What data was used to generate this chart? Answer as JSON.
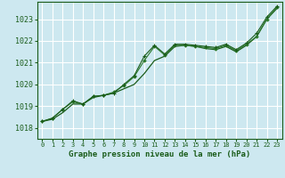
{
  "background_color": "#cde8f0",
  "grid_color": "#ffffff",
  "line_color_dark": "#1a5c1a",
  "line_color_med": "#2d7a2d",
  "title": "Graphe pression niveau de la mer (hPa)",
  "xlim": [
    -0.5,
    23.5
  ],
  "ylim": [
    1017.5,
    1023.8
  ],
  "yticks": [
    1018,
    1019,
    1020,
    1021,
    1022,
    1023
  ],
  "xticks": [
    0,
    1,
    2,
    3,
    4,
    5,
    6,
    7,
    8,
    9,
    10,
    11,
    12,
    13,
    14,
    15,
    16,
    17,
    18,
    19,
    20,
    21,
    22,
    23
  ],
  "series1_x": [
    0,
    1,
    2,
    3,
    4,
    5,
    6,
    7,
    8,
    9,
    10,
    11,
    12,
    13,
    14,
    15,
    16,
    17,
    18,
    19,
    20,
    21,
    22,
    23
  ],
  "series1_y": [
    1018.3,
    1018.4,
    1018.7,
    1019.1,
    1019.1,
    1019.4,
    1019.5,
    1019.6,
    1019.8,
    1020.0,
    1020.5,
    1021.1,
    1021.3,
    1021.75,
    1021.8,
    1021.75,
    1021.65,
    1021.6,
    1021.75,
    1021.5,
    1021.8,
    1022.2,
    1023.0,
    1023.5
  ],
  "series2_x": [
    0,
    1,
    2,
    3,
    4,
    5,
    6,
    7,
    8,
    9,
    10,
    11,
    12,
    13,
    14,
    15,
    16,
    17,
    18,
    19,
    20,
    21,
    22,
    23
  ],
  "series2_y": [
    1018.3,
    1018.45,
    1018.85,
    1019.2,
    1019.1,
    1019.45,
    1019.5,
    1019.65,
    1019.95,
    1020.35,
    1021.1,
    1021.75,
    1021.35,
    1021.8,
    1021.8,
    1021.75,
    1021.7,
    1021.65,
    1021.8,
    1021.55,
    1021.85,
    1022.2,
    1023.0,
    1023.55
  ],
  "series3_x": [
    0,
    1,
    2,
    3,
    4,
    5,
    6,
    7,
    8,
    9,
    10,
    11,
    12,
    13,
    14,
    15,
    16,
    17,
    18,
    19,
    20,
    21,
    22,
    23
  ],
  "series3_y": [
    1018.3,
    1018.45,
    1018.85,
    1019.2,
    1019.1,
    1019.45,
    1019.5,
    1019.65,
    1019.95,
    1020.35,
    1021.1,
    1021.75,
    1021.35,
    1021.8,
    1021.8,
    1021.75,
    1021.7,
    1021.65,
    1021.8,
    1021.55,
    1021.85,
    1022.2,
    1023.0,
    1023.55
  ]
}
